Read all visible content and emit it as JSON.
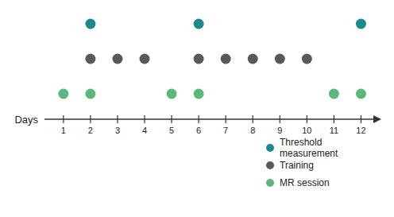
{
  "chart_data": {
    "type": "scatter",
    "x_label": "Days",
    "xlim": [
      0.3,
      12.75
    ],
    "xticks": [
      1,
      2,
      3,
      4,
      5,
      6,
      7,
      8,
      9,
      10,
      11,
      12
    ],
    "tick_labels": "x",
    "grid": false,
    "legend": "lower right",
    "series": [
      {
        "name": "Threshold\nmeasurement",
        "color": "#1a8a8a",
        "x": [
          2,
          6,
          12
        ]
      },
      {
        "name": "Training",
        "color": "#595959",
        "x": [
          2,
          3,
          4,
          6,
          7,
          8,
          9,
          10
        ]
      },
      {
        "name": "MR session",
        "color": "#5cb87a",
        "x": [
          1,
          2,
          5,
          6,
          11,
          12
        ]
      }
    ]
  }
}
